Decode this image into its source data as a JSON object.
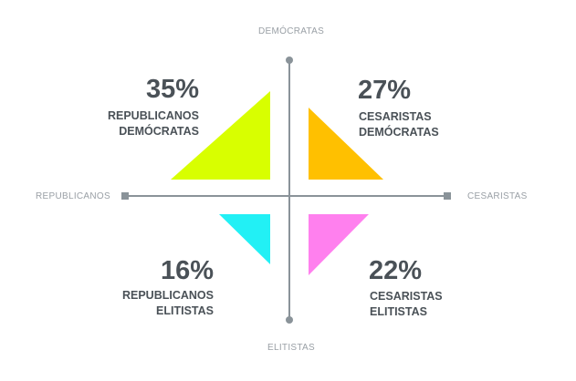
{
  "axes": {
    "top": "DEMÓCRATAS",
    "bottom": "ELITISTAS",
    "left": "REPUBLICANOS",
    "right": "CESARISTAS"
  },
  "quadrants": [
    {
      "id": "top-left",
      "percent": "35%",
      "line1": "REPUBLICANOS",
      "line2": "DEMÓCRATAS",
      "color": "#d8ff00"
    },
    {
      "id": "top-right",
      "percent": "27%",
      "line1": "CESARISTAS",
      "line2": "DEMÓCRATAS",
      "color": "#ffc000"
    },
    {
      "id": "bottom-left",
      "percent": "16%",
      "line1": "REPUBLICANOS",
      "line2": "ELITISTAS",
      "color": "#22f0f5"
    },
    {
      "id": "bottom-right",
      "percent": "22%",
      "line1": "CESARISTAS",
      "line2": "ELITISTAS",
      "color": "#ff80ee"
    }
  ],
  "axis_color": "#8a9399"
}
